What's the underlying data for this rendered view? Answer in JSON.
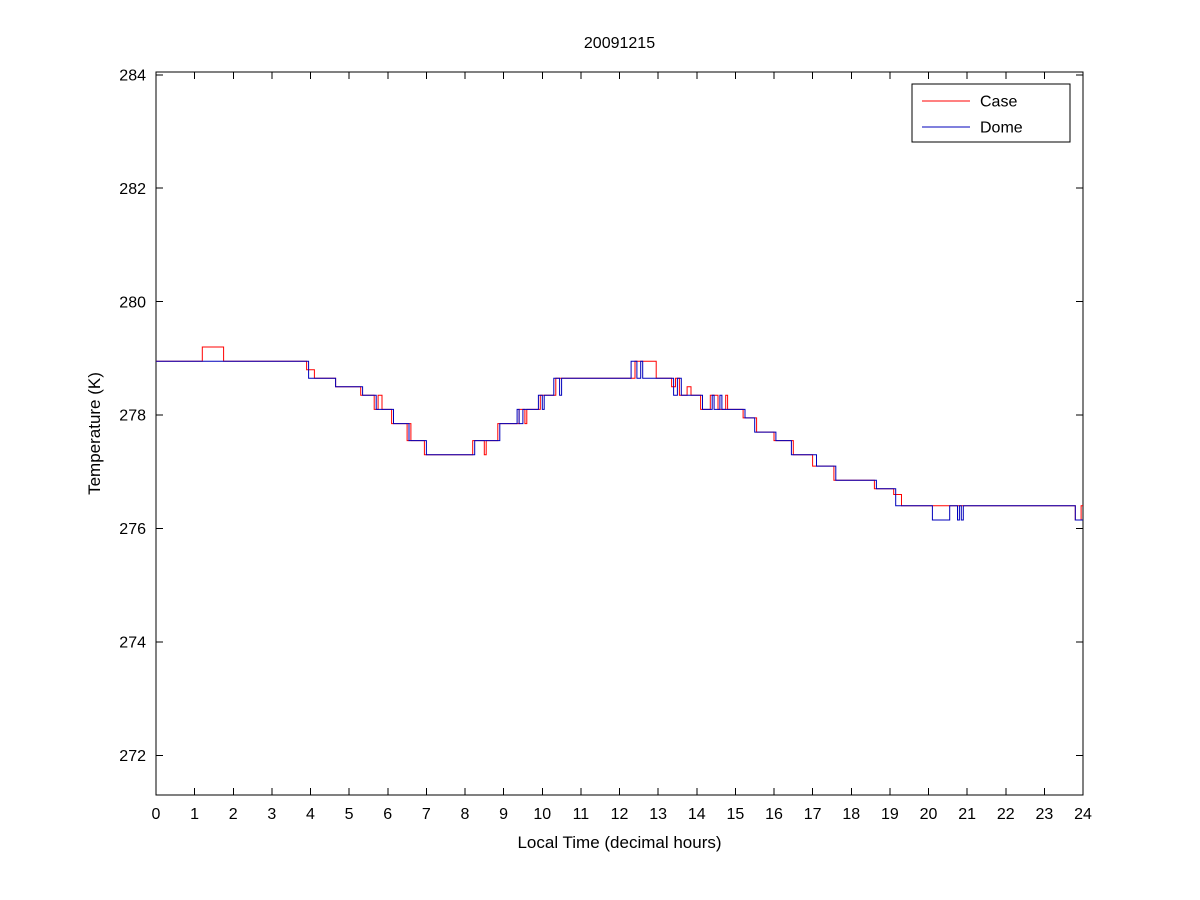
{
  "figure": {
    "background": "#ffffff"
  },
  "chart_data": {
    "type": "line",
    "title": "20091215",
    "xlabel": "Local Time (decimal hours)",
    "ylabel": "Temperature (K)",
    "xlim": [
      0,
      24
    ],
    "ylim": [
      271.3,
      284.05
    ],
    "x_ticks": [
      0,
      1,
      2,
      3,
      4,
      5,
      6,
      7,
      8,
      9,
      10,
      11,
      12,
      13,
      14,
      15,
      16,
      17,
      18,
      19,
      20,
      21,
      22,
      23,
      24
    ],
    "y_ticks": [
      272,
      274,
      276,
      278,
      280,
      282,
      284
    ],
    "grid": false,
    "legend": {
      "position": "top-right",
      "entries": [
        {
          "label": "Case",
          "color": "#ff0000"
        },
        {
          "label": "Dome",
          "color": "#0000bb"
        }
      ]
    },
    "series": [
      {
        "name": "Case",
        "color": "#ff0000",
        "points": [
          [
            0,
            278.95
          ],
          [
            1.2,
            278.95
          ],
          [
            1.2,
            279.2
          ],
          [
            1.75,
            279.2
          ],
          [
            1.75,
            278.95
          ],
          [
            3.9,
            278.95
          ],
          [
            3.9,
            278.8
          ],
          [
            4.1,
            278.8
          ],
          [
            4.1,
            278.65
          ],
          [
            4.65,
            278.65
          ],
          [
            4.65,
            278.5
          ],
          [
            5.3,
            278.5
          ],
          [
            5.3,
            278.35
          ],
          [
            5.65,
            278.35
          ],
          [
            5.65,
            278.1
          ],
          [
            5.75,
            278.1
          ],
          [
            5.75,
            278.35
          ],
          [
            5.85,
            278.35
          ],
          [
            5.85,
            278.1
          ],
          [
            6.1,
            278.1
          ],
          [
            6.1,
            277.85
          ],
          [
            6.5,
            277.85
          ],
          [
            6.5,
            277.55
          ],
          [
            6.55,
            277.55
          ],
          [
            6.55,
            277.85
          ],
          [
            6.6,
            277.85
          ],
          [
            6.6,
            277.55
          ],
          [
            6.95,
            277.55
          ],
          [
            6.95,
            277.3
          ],
          [
            8.2,
            277.3
          ],
          [
            8.2,
            277.55
          ],
          [
            8.5,
            277.55
          ],
          [
            8.5,
            277.3
          ],
          [
            8.55,
            277.3
          ],
          [
            8.55,
            277.55
          ],
          [
            8.85,
            277.55
          ],
          [
            8.85,
            277.85
          ],
          [
            9.4,
            277.85
          ],
          [
            9.4,
            278.1
          ],
          [
            9.55,
            278.1
          ],
          [
            9.55,
            277.85
          ],
          [
            9.6,
            277.85
          ],
          [
            9.6,
            278.1
          ],
          [
            9.95,
            278.1
          ],
          [
            9.95,
            278.35
          ],
          [
            10.35,
            278.35
          ],
          [
            10.35,
            278.65
          ],
          [
            12.4,
            278.65
          ],
          [
            12.4,
            278.95
          ],
          [
            12.95,
            278.95
          ],
          [
            12.95,
            278.65
          ],
          [
            13.35,
            278.65
          ],
          [
            13.35,
            278.5
          ],
          [
            13.45,
            278.5
          ],
          [
            13.45,
            278.65
          ],
          [
            13.55,
            278.65
          ],
          [
            13.55,
            278.35
          ],
          [
            13.75,
            278.35
          ],
          [
            13.75,
            278.5
          ],
          [
            13.85,
            278.5
          ],
          [
            13.85,
            278.35
          ],
          [
            14.1,
            278.35
          ],
          [
            14.1,
            278.1
          ],
          [
            14.35,
            278.1
          ],
          [
            14.35,
            278.35
          ],
          [
            14.55,
            278.35
          ],
          [
            14.55,
            278.1
          ],
          [
            14.75,
            278.1
          ],
          [
            14.75,
            278.35
          ],
          [
            14.8,
            278.35
          ],
          [
            14.8,
            278.1
          ],
          [
            15.2,
            278.1
          ],
          [
            15.2,
            277.95
          ],
          [
            15.55,
            277.95
          ],
          [
            15.55,
            277.7
          ],
          [
            16.0,
            277.7
          ],
          [
            16.0,
            277.55
          ],
          [
            16.5,
            277.55
          ],
          [
            16.5,
            277.3
          ],
          [
            17.0,
            277.3
          ],
          [
            17.0,
            277.1
          ],
          [
            17.55,
            277.1
          ],
          [
            17.55,
            276.85
          ],
          [
            18.6,
            276.85
          ],
          [
            18.6,
            276.7
          ],
          [
            19.1,
            276.7
          ],
          [
            19.1,
            276.6
          ],
          [
            19.3,
            276.6
          ],
          [
            19.3,
            276.4
          ],
          [
            23.8,
            276.4
          ],
          [
            23.8,
            276.15
          ],
          [
            23.95,
            276.15
          ],
          [
            23.95,
            276.4
          ],
          [
            24,
            276.4
          ]
        ]
      },
      {
        "name": "Dome",
        "color": "#0000bb",
        "points": [
          [
            0,
            278.95
          ],
          [
            3.95,
            278.95
          ],
          [
            3.95,
            278.65
          ],
          [
            4.65,
            278.65
          ],
          [
            4.65,
            278.5
          ],
          [
            5.35,
            278.5
          ],
          [
            5.35,
            278.35
          ],
          [
            5.7,
            278.35
          ],
          [
            5.7,
            278.1
          ],
          [
            6.15,
            278.1
          ],
          [
            6.15,
            277.85
          ],
          [
            6.55,
            277.85
          ],
          [
            6.55,
            277.55
          ],
          [
            7.0,
            277.55
          ],
          [
            7.0,
            277.3
          ],
          [
            8.25,
            277.3
          ],
          [
            8.25,
            277.55
          ],
          [
            8.9,
            277.55
          ],
          [
            8.9,
            277.85
          ],
          [
            9.35,
            277.85
          ],
          [
            9.35,
            278.1
          ],
          [
            9.4,
            278.1
          ],
          [
            9.4,
            277.85
          ],
          [
            9.5,
            277.85
          ],
          [
            9.5,
            278.1
          ],
          [
            9.9,
            278.1
          ],
          [
            9.9,
            278.35
          ],
          [
            10.0,
            278.35
          ],
          [
            10.0,
            278.1
          ],
          [
            10.05,
            278.1
          ],
          [
            10.05,
            278.35
          ],
          [
            10.3,
            278.35
          ],
          [
            10.3,
            278.65
          ],
          [
            10.45,
            278.65
          ],
          [
            10.45,
            278.35
          ],
          [
            10.5,
            278.35
          ],
          [
            10.5,
            278.65
          ],
          [
            12.3,
            278.65
          ],
          [
            12.3,
            278.95
          ],
          [
            12.45,
            278.95
          ],
          [
            12.45,
            278.65
          ],
          [
            12.55,
            278.65
          ],
          [
            12.55,
            278.95
          ],
          [
            12.6,
            278.95
          ],
          [
            12.6,
            278.65
          ],
          [
            13.4,
            278.65
          ],
          [
            13.4,
            278.35
          ],
          [
            13.5,
            278.35
          ],
          [
            13.5,
            278.65
          ],
          [
            13.6,
            278.65
          ],
          [
            13.6,
            278.35
          ],
          [
            14.15,
            278.35
          ],
          [
            14.15,
            278.1
          ],
          [
            14.4,
            278.1
          ],
          [
            14.4,
            278.35
          ],
          [
            14.45,
            278.35
          ],
          [
            14.45,
            278.1
          ],
          [
            14.6,
            278.1
          ],
          [
            14.6,
            278.35
          ],
          [
            14.65,
            278.35
          ],
          [
            14.65,
            278.1
          ],
          [
            15.25,
            278.1
          ],
          [
            15.25,
            277.95
          ],
          [
            15.5,
            277.95
          ],
          [
            15.5,
            277.7
          ],
          [
            16.05,
            277.7
          ],
          [
            16.05,
            277.55
          ],
          [
            16.45,
            277.55
          ],
          [
            16.45,
            277.3
          ],
          [
            17.1,
            277.3
          ],
          [
            17.1,
            277.1
          ],
          [
            17.6,
            277.1
          ],
          [
            17.6,
            276.85
          ],
          [
            18.65,
            276.85
          ],
          [
            18.65,
            276.7
          ],
          [
            19.15,
            276.7
          ],
          [
            19.15,
            276.4
          ],
          [
            20.1,
            276.4
          ],
          [
            20.1,
            276.15
          ],
          [
            20.55,
            276.15
          ],
          [
            20.55,
            276.4
          ],
          [
            20.75,
            276.4
          ],
          [
            20.75,
            276.15
          ],
          [
            20.8,
            276.15
          ],
          [
            20.8,
            276.4
          ],
          [
            20.85,
            276.4
          ],
          [
            20.85,
            276.15
          ],
          [
            20.9,
            276.15
          ],
          [
            20.9,
            276.4
          ],
          [
            23.8,
            276.4
          ],
          [
            23.8,
            276.15
          ],
          [
            24,
            276.15
          ]
        ]
      }
    ]
  }
}
